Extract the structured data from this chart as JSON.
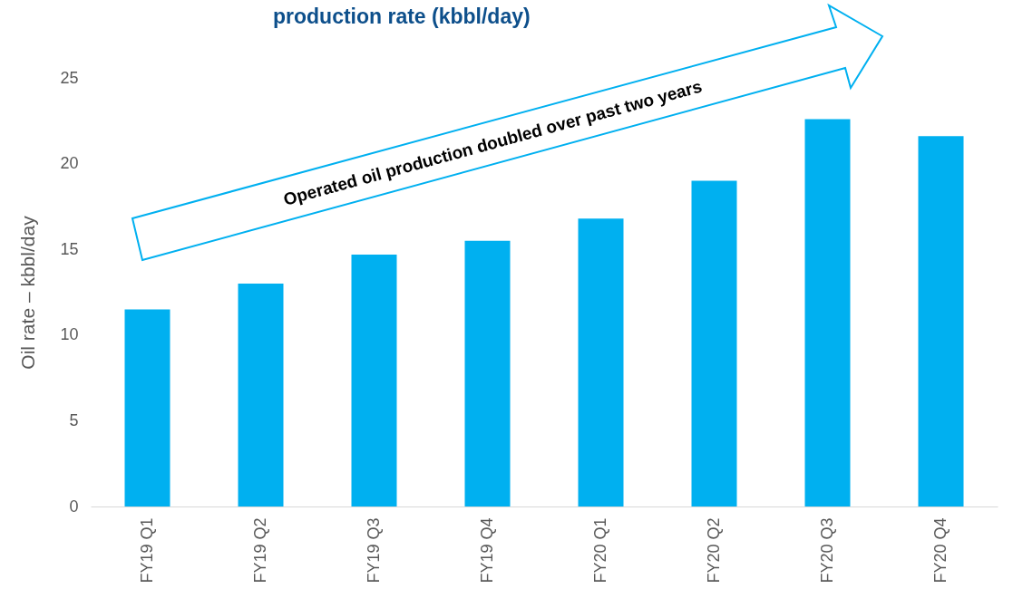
{
  "chart_data": {
    "type": "bar",
    "title": "production rate (kbbl/day)",
    "ylabel": "Oil rate – kbbl/day",
    "categories": [
      "FY19 Q1",
      "FY19 Q2",
      "FY19 Q3",
      "FY19 Q4",
      "FY20 Q1",
      "FY20 Q2",
      "FY20 Q3",
      "FY20 Q4"
    ],
    "values": [
      11.5,
      13.0,
      14.7,
      15.5,
      16.8,
      19.0,
      22.6,
      21.6
    ],
    "color": "#00b0f0",
    "ylim": [
      0,
      25
    ],
    "yticks": [
      0,
      5,
      10,
      15,
      20,
      25
    ],
    "grid": false,
    "annotations": [
      "Operated oil production doubled over past two years"
    ]
  }
}
